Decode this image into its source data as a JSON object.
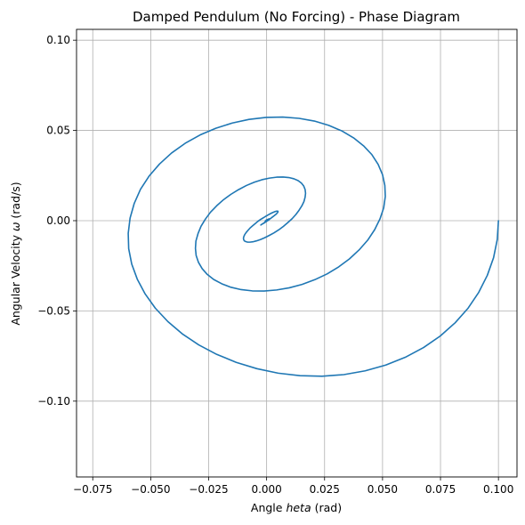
{
  "chart_data": {
    "type": "line",
    "title": "Damped Pendulum (No Forcing) - Phase Diagram",
    "xlabel_prefix": "Angle ",
    "xlabel_symbol": "heta",
    "xlabel_suffix": " (rad)",
    "ylabel_prefix": "Angular Velocity ",
    "ylabel_symbol": "ω",
    "ylabel_suffix": " (rad/s)",
    "xlim": [
      -0.082,
      0.108
    ],
    "ylim": [
      -0.142,
      0.106
    ],
    "xticks": [
      -0.075,
      -0.05,
      -0.025,
      0.0,
      0.025,
      0.05,
      0.075,
      0.1
    ],
    "xtick_labels": [
      "−0.075",
      "−0.050",
      "−0.025",
      "0.000",
      "0.025",
      "0.050",
      "0.075",
      "0.100"
    ],
    "yticks": [
      -0.1,
      -0.05,
      0.0,
      0.05,
      0.1
    ],
    "ytick_labels": [
      "−0.10",
      "−0.05",
      "0.00",
      "0.05",
      "0.10"
    ],
    "grid": true,
    "line_color": "#1f77b4",
    "grid_color": "#b0b0b0",
    "series": [
      {
        "theta": [
          0.1,
          0.0995,
          0.0979,
          0.0952,
          0.0915,
          0.0869,
          0.0813,
          0.0749,
          0.0677,
          0.0598,
          0.0514,
          0.0425,
          0.0333,
          0.0239,
          0.0144,
          0.005,
          -0.0042,
          -0.0131,
          -0.0215,
          -0.0293,
          -0.0364,
          -0.0426,
          -0.048,
          -0.0524,
          -0.0558,
          -0.0582,
          -0.0595,
          -0.0597,
          -0.0589,
          -0.0571,
          -0.0544,
          -0.0507,
          -0.0462,
          -0.041,
          -0.0351,
          -0.0287,
          -0.0219,
          -0.0148,
          -0.0076,
          -0.0002,
          0.007,
          0.014,
          0.0206,
          0.0268,
          0.0325,
          0.0375,
          0.0418,
          0.0454,
          0.0481,
          0.05,
          0.051,
          0.0512,
          0.0505,
          0.0489,
          0.0466,
          0.0436,
          0.0399,
          0.0357,
          0.0311,
          0.0261,
          0.0208,
          0.0153,
          0.0098,
          0.0043,
          -0.0011,
          -0.0062,
          -0.011,
          -0.0154,
          -0.0193,
          -0.0228,
          -0.0256,
          -0.0278,
          -0.0294,
          -0.0304,
          -0.0307,
          -0.0305,
          -0.0296,
          -0.0283,
          -0.0264,
          -0.0242,
          -0.0215,
          -0.0186,
          -0.0154,
          -0.0121,
          -0.0087,
          -0.0053,
          -0.002,
          0.0013,
          0.0043,
          0.0071,
          0.0096,
          0.0118,
          0.0136,
          0.015,
          0.016,
          0.0166,
          0.0168,
          0.0166,
          0.0161,
          0.0152,
          0.014,
          0.0126,
          0.011,
          0.0091,
          0.0072,
          0.0052,
          0.0031,
          0.0011,
          -0.0009,
          -0.0027,
          -0.0044,
          -0.0059,
          -0.0072,
          -0.0082,
          -0.009,
          -0.0096,
          -0.0099,
          -0.01,
          -0.0098,
          -0.0094,
          -0.0088,
          -0.008,
          -0.0071,
          -0.006,
          -0.0049,
          -0.0038,
          -0.0026,
          -0.0014,
          -0.0003,
          0.0008,
          0.0018,
          0.0026,
          0.0034,
          0.004,
          0.0045,
          0.0048,
          0.0049,
          0.0049,
          0.0048,
          0.0045,
          0.0042,
          0.0037,
          0.0031,
          0.0025,
          0.0019,
          0.0012,
          0.0006,
          -0.0001,
          -0.0006,
          -0.0011,
          -0.0016,
          -0.0019,
          -0.0022,
          -0.0024,
          -0.0025,
          -0.0025,
          -0.0024,
          -0.0023,
          -0.002,
          -0.0018,
          -0.0014,
          -0.0011,
          -0.0007,
          -0.0004,
          0.0,
          0.0003,
          0.0006,
          0.0008,
          0.001,
          0.0012,
          0.0012,
          0.0013,
          0.0012,
          0.0011,
          0.001,
          0.0009,
          0.0007,
          0.0005,
          0.0003,
          0.0001,
          -0.0001,
          -0.0002,
          -0.0003,
          -0.0004,
          -0.0005,
          -0.0005,
          -0.0006,
          -0.0005,
          -0.0005,
          -0.0004,
          -0.0004,
          -0.0003,
          -0.0002,
          -0.0001,
          0.0
        ],
        "omega": [
          0.0,
          -0.0103,
          -0.0205,
          -0.0303,
          -0.0397,
          -0.0485,
          -0.0566,
          -0.0639,
          -0.0703,
          -0.0757,
          -0.08,
          -0.0832,
          -0.0853,
          -0.0862,
          -0.0859,
          -0.0845,
          -0.082,
          -0.0785,
          -0.0741,
          -0.0688,
          -0.0627,
          -0.0559,
          -0.0485,
          -0.0406,
          -0.0324,
          -0.024,
          -0.0155,
          -0.007,
          0.0014,
          0.0096,
          0.0174,
          0.0247,
          0.0314,
          0.0375,
          0.0429,
          0.0475,
          0.0512,
          0.0541,
          0.0561,
          0.0572,
          0.0574,
          0.0567,
          0.0552,
          0.0528,
          0.0497,
          0.0459,
          0.0415,
          0.0366,
          0.0312,
          0.0255,
          0.0195,
          0.0134,
          0.0071,
          0.001,
          -0.005,
          -0.0108,
          -0.0162,
          -0.0212,
          -0.0256,
          -0.0295,
          -0.0327,
          -0.0353,
          -0.0372,
          -0.0384,
          -0.039,
          -0.0389,
          -0.0382,
          -0.0369,
          -0.035,
          -0.0326,
          -0.0298,
          -0.0266,
          -0.0231,
          -0.0193,
          -0.0154,
          -0.0113,
          -0.0072,
          -0.0031,
          0.0009,
          0.0047,
          0.0083,
          0.0116,
          0.0146,
          0.0172,
          0.0195,
          0.0213,
          0.0227,
          0.0236,
          0.0241,
          0.0242,
          0.0239,
          0.0232,
          0.0222,
          0.0208,
          0.0192,
          0.0173,
          0.0152,
          0.013,
          0.0106,
          0.0082,
          0.0058,
          0.0034,
          0.0011,
          -0.0011,
          -0.0032,
          -0.0051,
          -0.0068,
          -0.0082,
          -0.0095,
          -0.0105,
          -0.0112,
          -0.0117,
          -0.0119,
          -0.0119,
          -0.0116,
          -0.0112,
          -0.0105,
          -0.0097,
          -0.0087,
          -0.0076,
          -0.0065,
          -0.0053,
          -0.004,
          -0.0028,
          -0.0016,
          -0.0004,
          0.0007,
          0.0016,
          0.0025,
          0.0033,
          0.004,
          0.0045,
          0.0049,
          0.0052,
          0.0053,
          0.0053,
          0.0052,
          0.0049,
          0.0046,
          0.0042,
          0.0037,
          0.0032,
          0.0026,
          0.002,
          0.0014,
          0.0008,
          0.0002,
          -0.0003,
          -0.0008,
          -0.0012,
          -0.0016,
          -0.0019,
          -0.0021,
          -0.0023,
          -0.0024,
          -0.0024,
          -0.0023,
          -0.0022,
          -0.002,
          -0.0018,
          -0.0015,
          -0.0013,
          -0.001,
          -0.0007,
          -0.0004,
          -0.0001,
          0.0001,
          0.0003,
          0.0005,
          0.0007,
          0.0008,
          0.0009,
          0.001,
          0.001,
          0.001,
          0.0009,
          0.0008,
          0.0007,
          0.0006,
          0.0005,
          0.0004,
          0.0002,
          0.0001,
          0.0,
          -0.0001,
          -0.0002,
          -0.0003,
          -0.0004,
          -0.0004,
          -0.0004,
          -0.0004,
          -0.0004,
          -0.0003,
          -0.0003
        ]
      }
    ]
  }
}
